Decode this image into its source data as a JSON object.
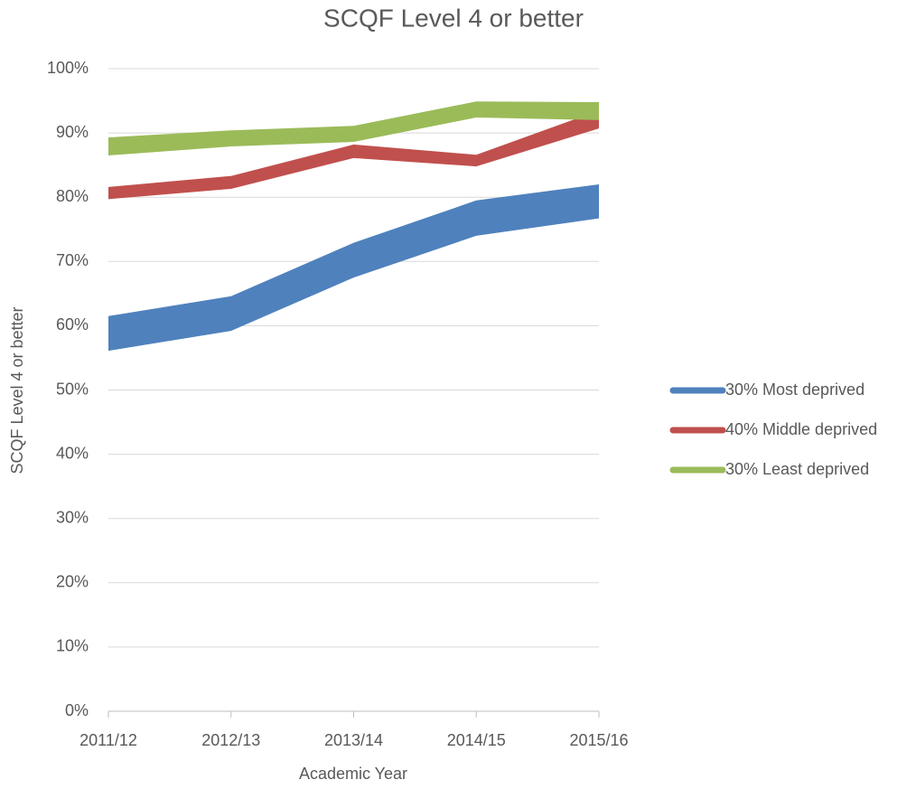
{
  "chart_data": {
    "type": "band",
    "title": "SCQF Level 4 or better",
    "x_label": "Academic Year",
    "y_label": "SCQF Level 4 or better",
    "categories": [
      "2011/12",
      "2012/13",
      "2013/14",
      "2014/15",
      "2015/16"
    ],
    "series": [
      {
        "name": "30% Most deprived",
        "color": "#4f81bd",
        "lower": [
          56.1,
          59.2,
          67.5,
          74.0,
          76.7
        ],
        "upper": [
          61.5,
          64.6,
          72.9,
          79.5,
          82.0
        ]
      },
      {
        "name": "40% Middle deprived",
        "color": "#c0504d",
        "lower": [
          79.7,
          81.3,
          86.1,
          84.8,
          90.7
        ],
        "upper": [
          81.6,
          83.3,
          88.2,
          86.6,
          93.5
        ]
      },
      {
        "name": "30% Least deprived",
        "color": "#9bbb59",
        "lower": [
          86.5,
          87.9,
          88.6,
          92.4,
          92.0
        ],
        "upper": [
          89.3,
          90.4,
          91.1,
          94.9,
          94.8
        ]
      }
    ],
    "ylim": [
      0,
      100
    ],
    "yticks": [
      {
        "value": 0,
        "label": "0%"
      },
      {
        "value": 10,
        "label": "10%"
      },
      {
        "value": 20,
        "label": "20%"
      },
      {
        "value": 30,
        "label": "30%"
      },
      {
        "value": 40,
        "label": "40%"
      },
      {
        "value": 50,
        "label": "50%"
      },
      {
        "value": 60,
        "label": "60%"
      },
      {
        "value": 70,
        "label": "70%"
      },
      {
        "value": 80,
        "label": "80%"
      },
      {
        "value": 90,
        "label": "90%"
      },
      {
        "value": 100,
        "label": "100%"
      }
    ],
    "grid": true,
    "legend": "right"
  }
}
